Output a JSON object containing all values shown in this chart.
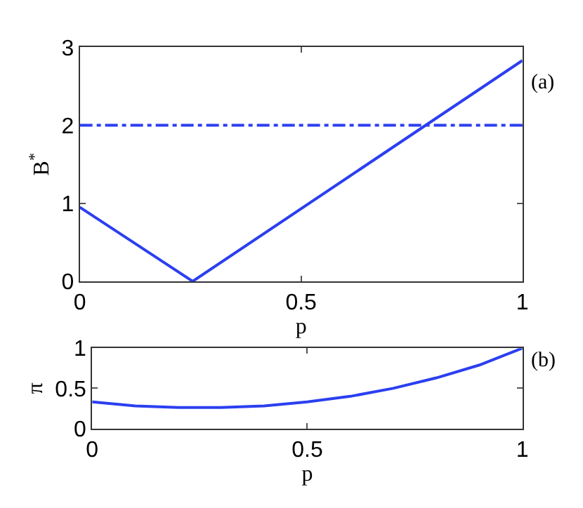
{
  "chart_data": [
    {
      "type": "line",
      "xlabel": "p",
      "ylabel": "B$^{*}$",
      "annotations": [
        "(a)"
      ],
      "x": [
        0,
        0.255,
        1
      ],
      "series": [
        {
          "color": "#2b3ff0",
          "values": [
            0.95,
            0,
            2.83
          ]
        }
      ],
      "xlim": [
        0,
        1
      ],
      "xticks": [
        0,
        0.5,
        1
      ],
      "ylim": [
        0,
        3
      ],
      "yticks": [
        0,
        1,
        2,
        3
      ],
      "ref_lines": [
        {
          "axis": "y",
          "value": 2,
          "color": "#2b3ff0",
          "line_style": "dashdot"
        }
      ],
      "marker": "none",
      "line_style": "solid"
    },
    {
      "type": "line",
      "xlabel": "p",
      "ylabel": "π",
      "annotations": [
        "(b)"
      ],
      "x": [
        0,
        0.1,
        0.2,
        0.3,
        0.4,
        0.5,
        0.6,
        0.7,
        0.8,
        0.9,
        1
      ],
      "series": [
        {
          "color": "#2b3ff0",
          "values": [
            0.33,
            0.28,
            0.26,
            0.26,
            0.28,
            0.33,
            0.4,
            0.5,
            0.63,
            0.79,
            1.0
          ]
        }
      ],
      "xlim": [
        0,
        1
      ],
      "xticks": [
        0,
        0.5,
        1
      ],
      "ylim": [
        0,
        1
      ],
      "yticks": [
        0,
        0.5,
        1
      ],
      "marker": "none",
      "line_style": "solid"
    }
  ]
}
